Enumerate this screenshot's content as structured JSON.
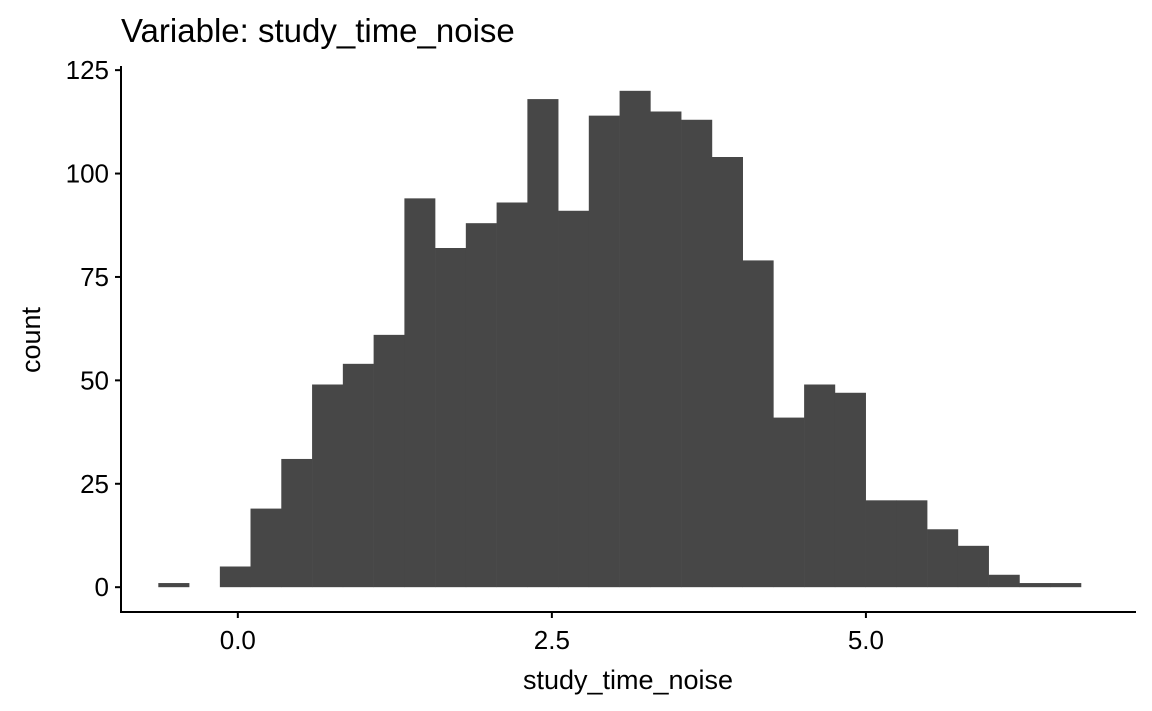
{
  "chart_data": {
    "type": "bar",
    "title": "Variable: study_time_noise",
    "xlabel": "study_time_noise",
    "ylabel": "count",
    "x_ticks": [
      "0.0",
      "2.5",
      "5.0"
    ],
    "y_ticks": [
      "0",
      "25",
      "50",
      "75",
      "100",
      "125"
    ],
    "xlim": [
      -0.93,
      7.15
    ],
    "ylim": [
      -6,
      126
    ],
    "bin_width": 0.2448,
    "bins": [
      {
        "x0": -0.633,
        "x1": -0.388,
        "count": 1
      },
      {
        "x0": -0.143,
        "x1": 0.101,
        "count": 5
      },
      {
        "x0": 0.101,
        "x1": 0.346,
        "count": 19
      },
      {
        "x0": 0.346,
        "x1": 0.591,
        "count": 31
      },
      {
        "x0": 0.591,
        "x1": 0.836,
        "count": 49
      },
      {
        "x0": 0.836,
        "x1": 1.081,
        "count": 54
      },
      {
        "x0": 1.081,
        "x1": 1.326,
        "count": 61
      },
      {
        "x0": 1.326,
        "x1": 1.57,
        "count": 94
      },
      {
        "x0": 1.57,
        "x1": 1.815,
        "count": 82
      },
      {
        "x0": 1.815,
        "x1": 2.06,
        "count": 88
      },
      {
        "x0": 2.06,
        "x1": 2.305,
        "count": 93
      },
      {
        "x0": 2.305,
        "x1": 2.55,
        "count": 118
      },
      {
        "x0": 2.55,
        "x1": 2.794,
        "count": 91
      },
      {
        "x0": 2.794,
        "x1": 3.039,
        "count": 114
      },
      {
        "x0": 3.039,
        "x1": 3.284,
        "count": 120
      },
      {
        "x0": 3.284,
        "x1": 3.529,
        "count": 115
      },
      {
        "x0": 3.529,
        "x1": 3.774,
        "count": 113
      },
      {
        "x0": 3.774,
        "x1": 4.019,
        "count": 104
      },
      {
        "x0": 4.019,
        "x1": 4.263,
        "count": 79
      },
      {
        "x0": 4.263,
        "x1": 4.508,
        "count": 41
      },
      {
        "x0": 4.508,
        "x1": 4.753,
        "count": 49
      },
      {
        "x0": 4.753,
        "x1": 4.998,
        "count": 47
      },
      {
        "x0": 4.998,
        "x1": 5.243,
        "count": 21
      },
      {
        "x0": 5.243,
        "x1": 5.487,
        "count": 21
      },
      {
        "x0": 5.487,
        "x1": 5.732,
        "count": 14
      },
      {
        "x0": 5.732,
        "x1": 5.977,
        "count": 10
      },
      {
        "x0": 5.977,
        "x1": 6.222,
        "count": 3
      },
      {
        "x0": 6.222,
        "x1": 6.467,
        "count": 1
      },
      {
        "x0": 6.467,
        "x1": 6.712,
        "count": 1
      }
    ],
    "bar_color": "#474747",
    "axis_color": "#000000",
    "background": "#ffffff",
    "grid": false,
    "legend": "none"
  }
}
